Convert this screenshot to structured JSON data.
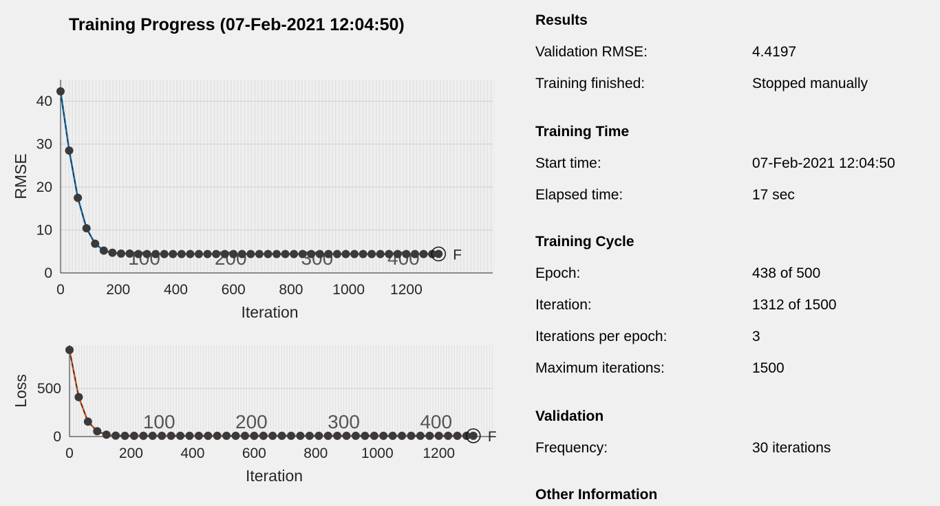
{
  "title": "Training Progress (07-Feb-2021 12:04:50)",
  "colors": {
    "rmse_line": "#0072bd",
    "loss_line": "#d95319",
    "marker": "#3a3a3a",
    "axes_bg": "#ffffff"
  },
  "chart_data": [
    {
      "type": "line",
      "ylabel": "RMSE",
      "xlabel": "Iteration",
      "xlim": [
        0,
        1500
      ],
      "ylim": [
        0,
        45
      ],
      "xticks": [
        "0",
        "200",
        "400",
        "600",
        "800",
        "1000",
        "1200"
      ],
      "yticks": [
        "0",
        "10",
        "20",
        "30",
        "40"
      ],
      "epoch_labels": [
        "100",
        "200",
        "300",
        "400"
      ],
      "final_marker": "F",
      "grid": true,
      "validation_x": [
        0,
        30,
        60,
        90,
        120,
        150,
        180,
        210,
        240,
        270,
        300,
        330,
        360,
        390,
        420,
        450,
        480,
        510,
        540,
        570,
        600,
        630,
        660,
        690,
        720,
        750,
        780,
        810,
        840,
        870,
        900,
        930,
        960,
        990,
        1020,
        1050,
        1080,
        1110,
        1140,
        1170,
        1200,
        1230,
        1260,
        1290,
        1312
      ],
      "validation_y": [
        42.3,
        28.5,
        17.5,
        10.4,
        6.8,
        5.2,
        4.7,
        4.5,
        4.5,
        4.4,
        4.4,
        4.4,
        4.4,
        4.4,
        4.4,
        4.4,
        4.4,
        4.4,
        4.4,
        4.4,
        4.4,
        4.4,
        4.4,
        4.4,
        4.4,
        4.4,
        4.4,
        4.4,
        4.4,
        4.4,
        4.4,
        4.4,
        4.4,
        4.4,
        4.4,
        4.4,
        4.4,
        4.4,
        4.4,
        4.4,
        4.4,
        4.4,
        4.4,
        4.4,
        4.42
      ]
    },
    {
      "type": "line",
      "ylabel": "Loss",
      "xlabel": "Iteration",
      "xlim": [
        0,
        1375
      ],
      "ylim": [
        0,
        950
      ],
      "xticks": [
        "0",
        "200",
        "400",
        "600",
        "800",
        "1000",
        "1200"
      ],
      "yticks": [
        "0",
        "500"
      ],
      "epoch_labels": [
        "100",
        "200",
        "300",
        "400"
      ],
      "final_marker": "F",
      "grid": true,
      "validation_x": [
        0,
        30,
        60,
        90,
        120,
        150,
        180,
        210,
        240,
        270,
        300,
        330,
        360,
        390,
        420,
        450,
        480,
        510,
        540,
        570,
        600,
        630,
        660,
        690,
        720,
        750,
        780,
        810,
        840,
        870,
        900,
        930,
        960,
        990,
        1020,
        1050,
        1080,
        1110,
        1140,
        1170,
        1200,
        1230,
        1260,
        1290,
        1312
      ],
      "validation_y": [
        900,
        410,
        155,
        55,
        20,
        10,
        8,
        8,
        8,
        8,
        8,
        8,
        8,
        8,
        8,
        8,
        8,
        8,
        8,
        8,
        8,
        8,
        8,
        8,
        8,
        8,
        8,
        8,
        8,
        8,
        8,
        8,
        8,
        8,
        8,
        8,
        8,
        8,
        8,
        8,
        8,
        8,
        8,
        8,
        8
      ]
    }
  ],
  "info": {
    "results_title": "Results",
    "validation_rmse_label": "Validation RMSE:",
    "validation_rmse_value": "4.4197",
    "training_finished_label": "Training finished:",
    "training_finished_value": "Stopped manually",
    "training_time_title": "Training Time",
    "start_time_label": "Start time:",
    "start_time_value": "07-Feb-2021 12:04:50",
    "elapsed_time_label": "Elapsed time:",
    "elapsed_time_value": "17 sec",
    "training_cycle_title": "Training Cycle",
    "epoch_label": "Epoch:",
    "epoch_value": "438 of 500",
    "iteration_label": "Iteration:",
    "iteration_value": "1312 of 1500",
    "iter_per_epoch_label": "Iterations per epoch:",
    "iter_per_epoch_value": "3",
    "max_iter_label": "Maximum iterations:",
    "max_iter_value": "1500",
    "validation_title": "Validation",
    "frequency_label": "Frequency:",
    "frequency_value": "30 iterations",
    "other_info_title": "Other Information"
  }
}
